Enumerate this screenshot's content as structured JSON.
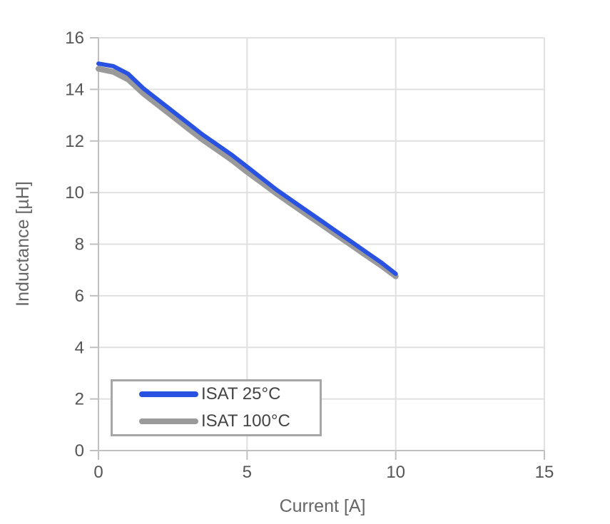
{
  "page": {
    "background_color": "#ffffff"
  },
  "colors": {
    "series_blue": "#2a52e2",
    "series_gray": "#9a9a9a",
    "gridline": "#e0e0e0",
    "axis": "#c0c0c0",
    "tick_text": "#555555",
    "title_text": "#666666",
    "legend_border": "#a6a6a6",
    "legend_text": "#444444"
  },
  "chart_data": {
    "type": "line",
    "title": "",
    "xlabel": "Current [A]",
    "ylabel": "Inductance [µH]",
    "xlim": [
      0,
      15
    ],
    "ylim": [
      0,
      16
    ],
    "x_ticks": [
      0,
      5,
      10,
      15
    ],
    "y_ticks": [
      0,
      2,
      4,
      6,
      8,
      10,
      12,
      14,
      16
    ],
    "grid": true,
    "legend_position": "bottom-left",
    "x": [
      0,
      0.5,
      1,
      1.5,
      2,
      2.5,
      3,
      3.5,
      4,
      4.5,
      5,
      5.5,
      6,
      6.5,
      7,
      7.5,
      8,
      8.5,
      9,
      9.5,
      10
    ],
    "series": [
      {
        "name": "ISAT 25°C",
        "color": "#2a52e2",
        "stroke_width": 6,
        "values": [
          15.0,
          14.9,
          14.6,
          14.05,
          13.6,
          13.15,
          12.7,
          12.25,
          11.85,
          11.45,
          11.0,
          10.55,
          10.1,
          9.7,
          9.3,
          8.9,
          8.5,
          8.1,
          7.7,
          7.3,
          6.85
        ]
      },
      {
        "name": "ISAT 100°C",
        "color": "#9a9a9a",
        "stroke_width": 8,
        "values": [
          14.8,
          14.68,
          14.38,
          13.85,
          13.4,
          12.95,
          12.5,
          12.05,
          11.65,
          11.25,
          10.8,
          10.38,
          9.95,
          9.55,
          9.15,
          8.76,
          8.36,
          7.97,
          7.57,
          7.18,
          6.75
        ]
      }
    ]
  },
  "legend": {
    "items": [
      {
        "label": "ISAT 25°C",
        "color": "#2a52e2"
      },
      {
        "label": "ISAT 100°C",
        "color": "#9a9a9a"
      }
    ]
  }
}
